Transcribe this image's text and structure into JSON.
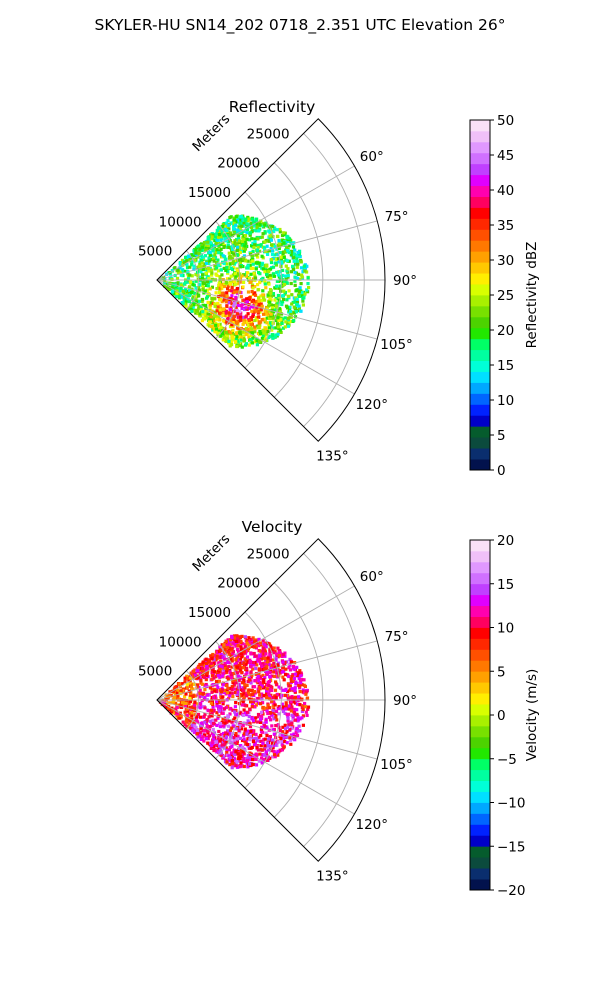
{
  "figure": {
    "title": "SKYLER-HU  SN14_202  0718_2.351 UTC Elevation 26°"
  },
  "chart_data": [
    {
      "type": "polar-sector",
      "title": "Reflectivity",
      "radial_label": "Meters",
      "radial_ticks": [
        "5000",
        "10000",
        "15000",
        "20000",
        "25000"
      ],
      "angle_ticks": [
        "60°",
        "75°",
        "90°",
        "105°",
        "120°",
        "135°"
      ],
      "angle_range_deg": [
        45,
        135
      ],
      "radial_max": 27500,
      "grid": true,
      "colorbar": {
        "label": "Reflectivity dBZ",
        "ticks": [
          "0",
          "5",
          "10",
          "15",
          "20",
          "25",
          "30",
          "35",
          "40",
          "45",
          "50"
        ],
        "min": 0,
        "max": 50,
        "colors": [
          "#02124d",
          "#0a2e6e",
          "#0b4b3d",
          "#055c2d",
          "#0000c8",
          "#0022ff",
          "#0066ff",
          "#00a8ff",
          "#00e0ff",
          "#00ffd8",
          "#00ffa0",
          "#00ff66",
          "#22e800",
          "#4cd300",
          "#78e000",
          "#a8f000",
          "#d8ff00",
          "#ffee00",
          "#ffc800",
          "#ffa000",
          "#ff7800",
          "#ff5000",
          "#ff2800",
          "#ff0000",
          "#ff0060",
          "#ff00b0",
          "#e000ff",
          "#c040ff",
          "#d070ff",
          "#e098ff",
          "#f0c0f8",
          "#fae0f8"
        ]
      }
    },
    {
      "type": "polar-sector",
      "title": "Velocity",
      "radial_label": "Meters",
      "radial_ticks": [
        "5000",
        "10000",
        "15000",
        "20000",
        "25000"
      ],
      "angle_ticks": [
        "60°",
        "75°",
        "90°",
        "105°",
        "120°",
        "135°"
      ],
      "angle_range_deg": [
        45,
        135
      ],
      "radial_max": 27500,
      "grid": true,
      "colorbar": {
        "label": "Velocity (m/s)",
        "ticks": [
          "−20",
          "−15",
          "−10",
          "−5",
          "0",
          "5",
          "10",
          "15",
          "20"
        ],
        "min": -20,
        "max": 20,
        "colors": [
          "#02124d",
          "#0a2e6e",
          "#0b4b3d",
          "#055c2d",
          "#0000c8",
          "#0022ff",
          "#0066ff",
          "#00a8ff",
          "#00e0ff",
          "#00ffd8",
          "#00ffa0",
          "#00ff66",
          "#22e800",
          "#4cd300",
          "#78e000",
          "#a8f000",
          "#d8ff00",
          "#ffee00",
          "#ffc800",
          "#ffa000",
          "#ff7800",
          "#ff5000",
          "#ff2800",
          "#ff0000",
          "#ff0060",
          "#ff00b0",
          "#e000ff",
          "#c040ff",
          "#d070ff",
          "#e098ff",
          "#f0c0f8",
          "#fae0f8"
        ]
      }
    }
  ]
}
